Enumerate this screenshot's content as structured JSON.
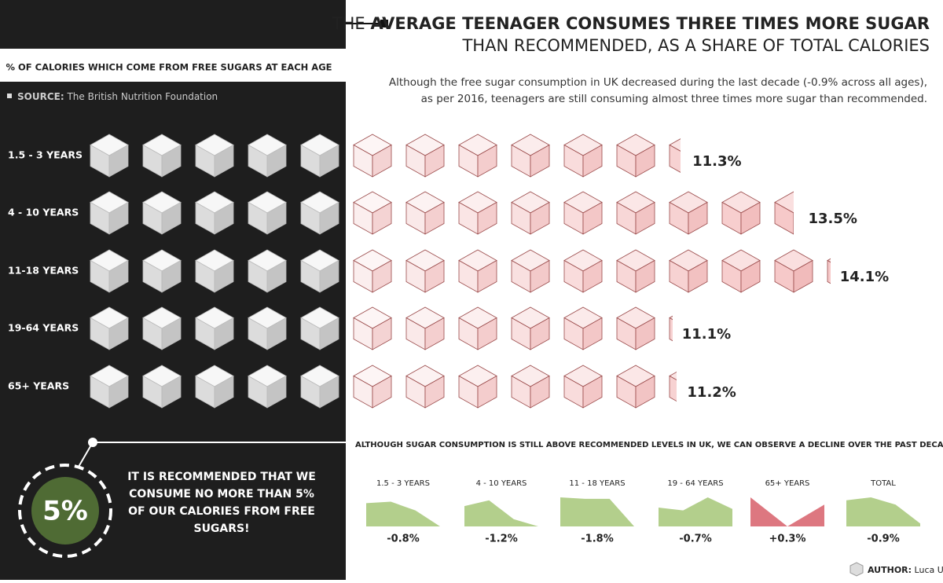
{
  "header": {
    "title_lead": "THE",
    "title_bold": "AVERAGE TEENAGER CONSUMES THREE TIMES MORE SUGAR",
    "title_line2": "THAN RECOMMENDED, AS A SHARE OF TOTAL CALORIES",
    "description": [
      "Although the free sugar consumption in UK decreased during the last decade (-0.9% across all ages),",
      "as per 2016, teenagers are still consuming almost three times more sugar than recommended."
    ]
  },
  "left_panel": {
    "subtitle": "% OF CALORIES WHICH COME FROM FREE SUGARS AT EACH AGE",
    "source_label": "SOURCE:",
    "source": "The British Nutrition Foundation",
    "recommendation_lines": [
      "IT IS RECOMMENDED THAT WE",
      "CONSUME NO MORE THAN 5%",
      "OF OUR CALORIES FROM FREE",
      "SUGARS!"
    ]
  },
  "chart_data": [
    {
      "type": "pictogram",
      "categories": [
        "1.5 - 3 YEARS",
        "4 - 10 YEARS",
        "11-18 YEARS",
        "19-64 YEARS",
        "65+ YEARS"
      ],
      "values": [
        11.3,
        13.5,
        14.1,
        11.1,
        11.2
      ],
      "value_labels": [
        "11.3%",
        "13.5%",
        "14.1%",
        "11.1%",
        "11.2%"
      ],
      "threshold": 5,
      "threshold_label": "5%",
      "threshold_color": "#e8e8e8",
      "color": "#f6c9c9"
    },
    {
      "type": "sparkline",
      "title": "ALTHOUGH SUGAR CONSUMPTION IS STILL ABOVE RECOMMENDED LEVELS IN UK, WE CAN OBSERVE A DECLINE OVER THE PAST DECADE:",
      "series": [
        {
          "name": "1.5 - 3 YEARS",
          "color": "#b3cf8c",
          "values": [
            0.8,
            0.85,
            0.55,
            0
          ],
          "change": -0.8,
          "change_label": "-0.8%"
        },
        {
          "name": "4 - 10 YEARS",
          "color": "#b3cf8c",
          "values": [
            0.7,
            0.9,
            0.25,
            0
          ],
          "change": -1.2,
          "change_label": "-1.2%"
        },
        {
          "name": "11 - 18 YEARS",
          "color": "#b3cf8c",
          "values": [
            1,
            0.95,
            0.95,
            0
          ],
          "change": -1.8,
          "change_label": "-1.8%"
        },
        {
          "name": "19 - 64 YEARS",
          "color": "#b3cf8c",
          "values": [
            0.65,
            0.55,
            1,
            0.6
          ],
          "change": -0.7,
          "change_label": "-0.7%"
        },
        {
          "name": "65+ YEARS",
          "color": "#dd7780",
          "values": [
            1,
            0,
            0.75
          ],
          "change": 0.3,
          "change_label": "+0.3%"
        },
        {
          "name": "TOTAL",
          "color": "#b3cf8c",
          "values": [
            0.9,
            1,
            0.75,
            0.1
          ],
          "change": -0.9,
          "change_label": "-0.9%"
        }
      ]
    }
  ],
  "footer": {
    "author_label": "AUTHOR:",
    "author": "Luca Urzi"
  }
}
